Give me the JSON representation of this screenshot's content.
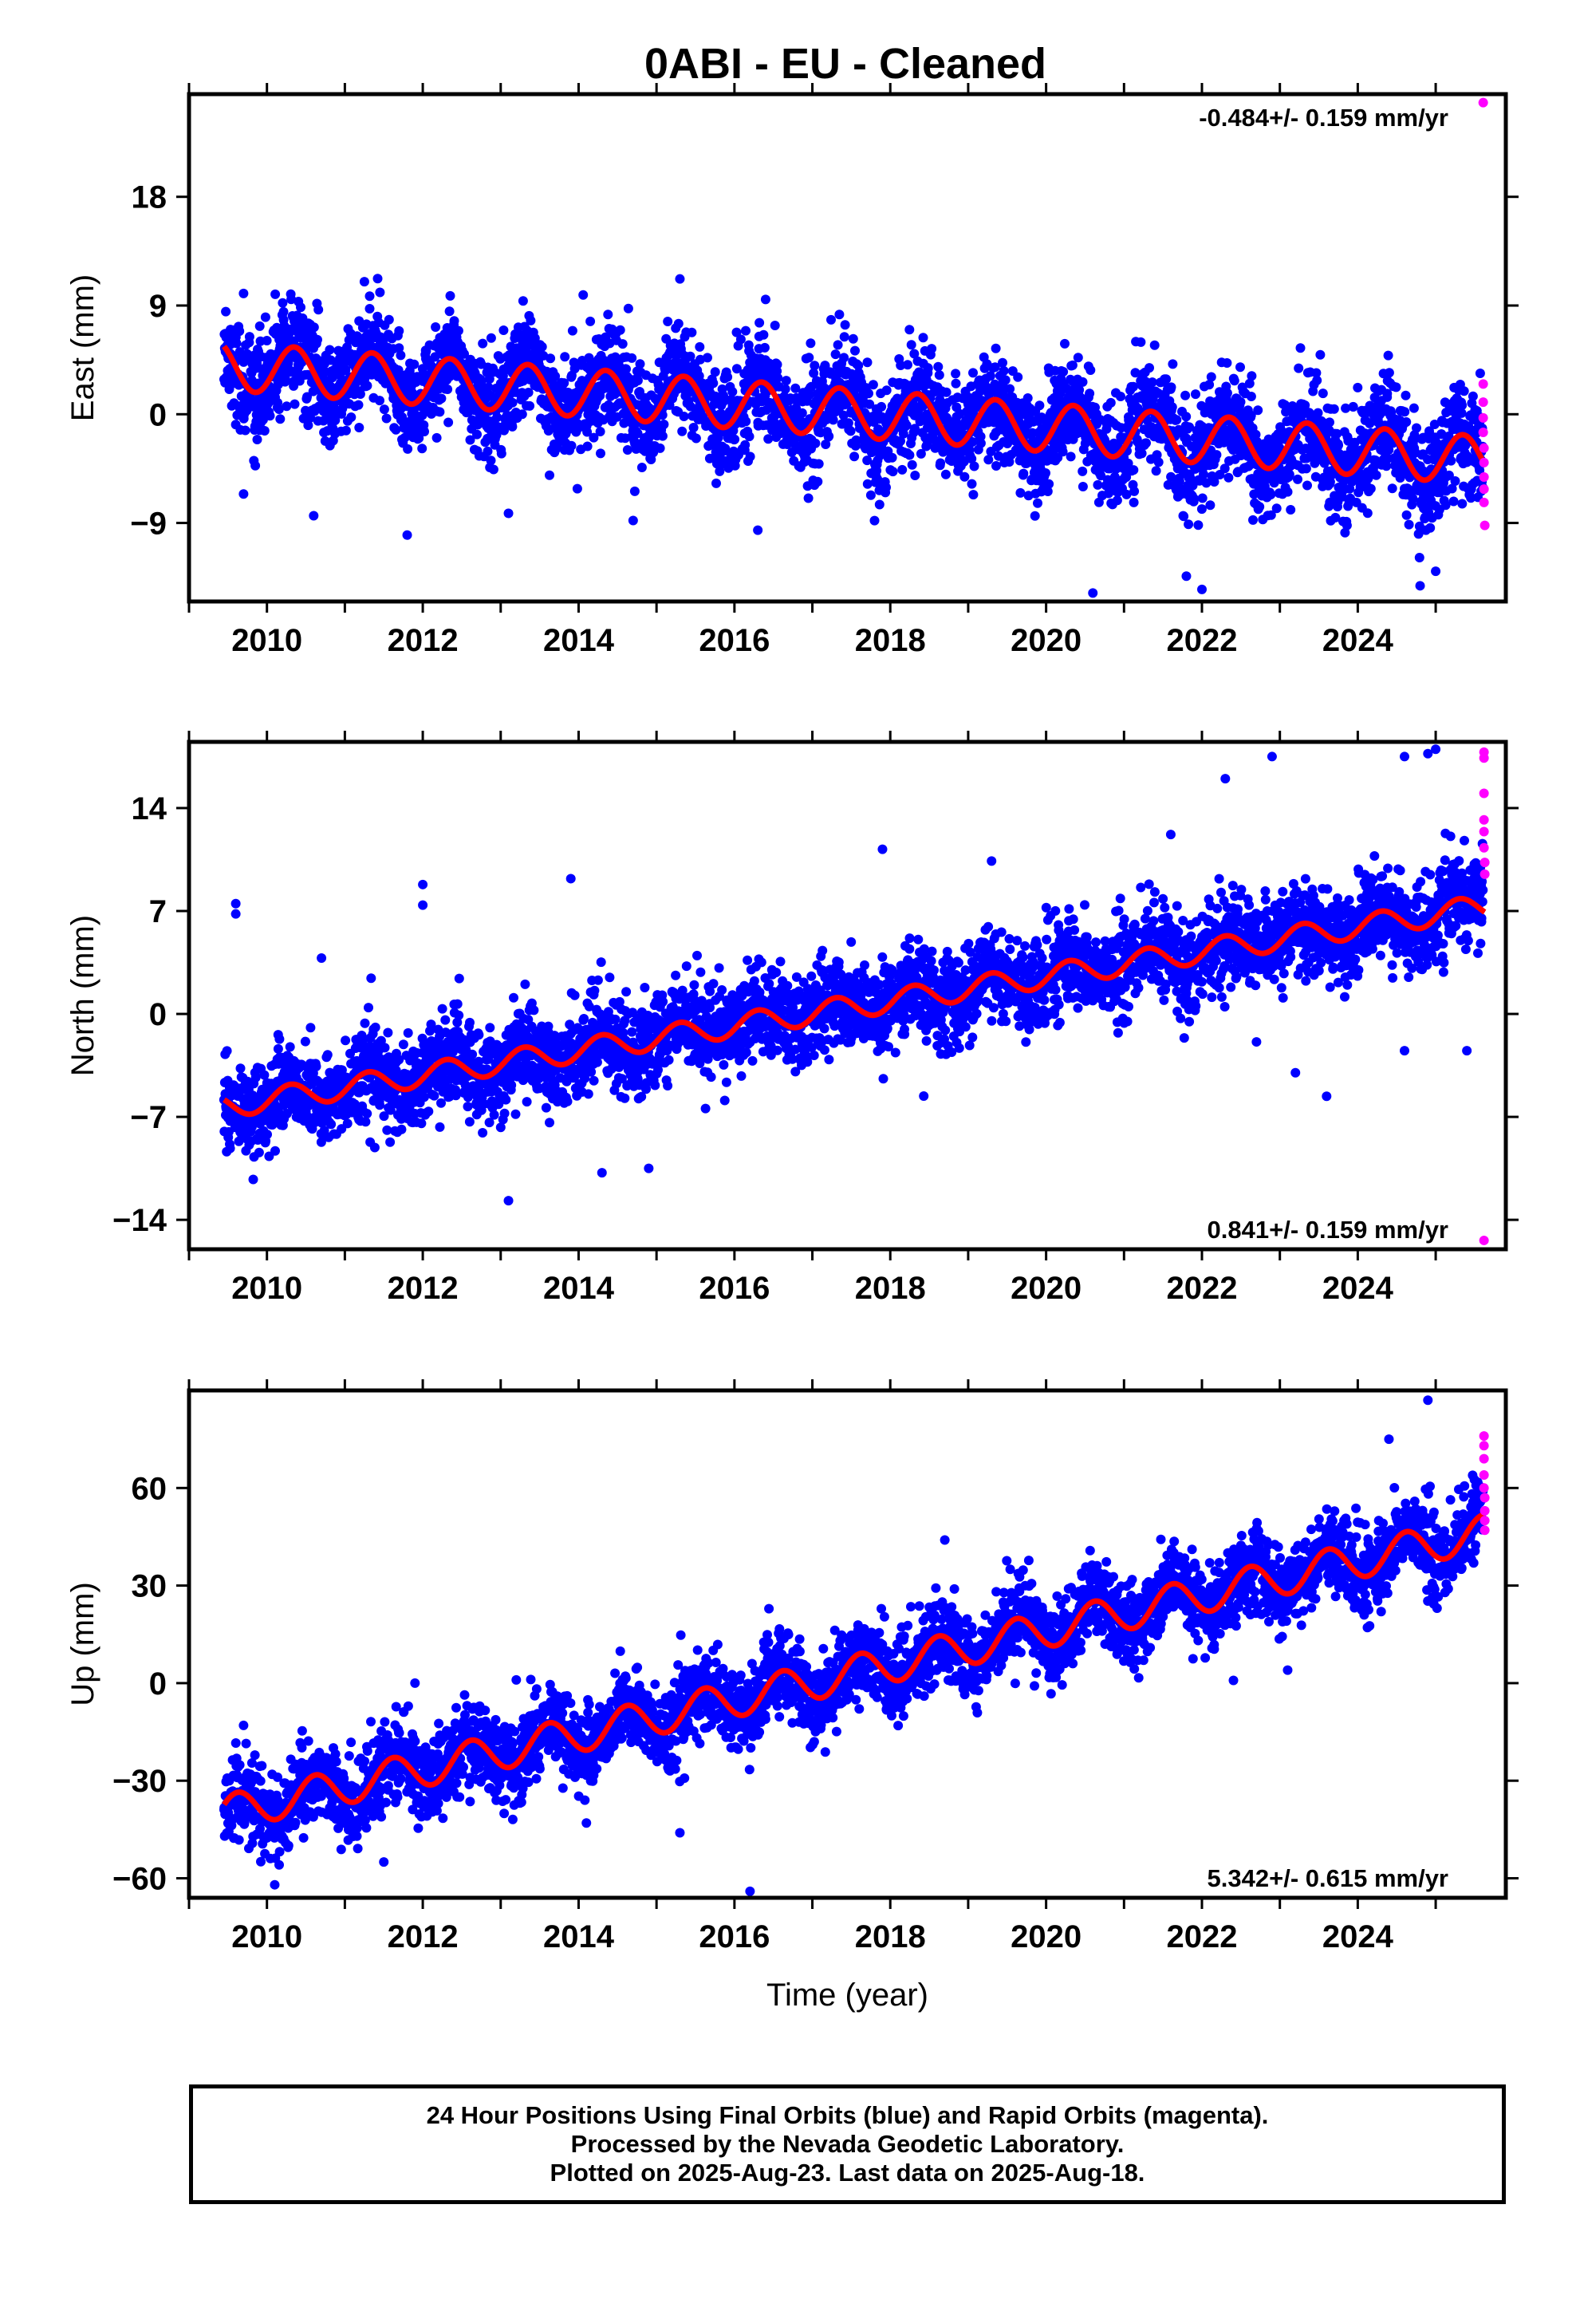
{
  "title": "0ABI  - EU - Cleaned",
  "colors": {
    "final_orbits": "#0000ff",
    "rapid_orbits": "#ff00ff",
    "model": "#ff0000"
  },
  "footer": {
    "line1": "24 Hour Positions Using Final Orbits (blue) and Rapid Orbits (magenta).",
    "line2": "Processed by the Nevada Geodetic Laboratory.",
    "line3": "Plotted on 2025-Aug-23. Last data on 2025-Aug-18."
  },
  "chart_data": [
    {
      "type": "scatter",
      "component": "east",
      "ylabel": "East (mm)",
      "xlabel": "",
      "xlim": [
        2009.0,
        2025.9
      ],
      "ylim": [
        -15.5,
        26.5
      ],
      "x_ticks": [
        2010,
        2012,
        2014,
        2016,
        2018,
        2020,
        2022,
        2024
      ],
      "y_ticks": [
        -9,
        0,
        9,
        18
      ],
      "rate_label": "-0.484+/- 0.159 mm/yr",
      "rate_label_position": "top-right",
      "model": {
        "start_year": 2009.45,
        "end_year": 2025.63,
        "value_at_start": 4.0,
        "trend_mm_per_yr": -0.484,
        "annual_amplitude": 2.0,
        "peak_fraction": 0.35
      },
      "scatter_noise_mm": 2.1,
      "outliers": [
        [
          2009.7,
          -6.6
        ],
        [
          2010.6,
          -8.4
        ],
        [
          2011.8,
          -10.0
        ],
        [
          2013.1,
          -8.2
        ],
        [
          2014.7,
          -8.8
        ],
        [
          2015.3,
          11.2
        ],
        [
          2016.3,
          -9.6
        ],
        [
          2016.4,
          9.5
        ],
        [
          2020.6,
          -14.8
        ],
        [
          2021.8,
          -13.4
        ],
        [
          2022.0,
          -14.5
        ],
        [
          2024.8,
          -14.2
        ],
        [
          2025.0,
          -13.0
        ],
        [
          2009.7,
          10.0
        ]
      ],
      "rapid_points": [
        [
          2025.61,
          25.8
        ],
        [
          2025.61,
          2.5
        ],
        [
          2025.61,
          1.0
        ],
        [
          2025.61,
          -0.3
        ],
        [
          2025.61,
          -1.5
        ],
        [
          2025.62,
          -2.8
        ],
        [
          2025.62,
          -4.0
        ],
        [
          2025.62,
          -5.2
        ],
        [
          2025.62,
          -6.2
        ],
        [
          2025.62,
          -7.3
        ],
        [
          2025.63,
          -9.2
        ]
      ]
    },
    {
      "type": "scatter",
      "component": "north",
      "ylabel": "North (mm)",
      "xlabel": "",
      "xlim": [
        2009.0,
        2025.9
      ],
      "ylim": [
        -16,
        18.5
      ],
      "x_ticks": [
        2010,
        2012,
        2014,
        2016,
        2018,
        2020,
        2022,
        2024
      ],
      "y_ticks": [
        -14,
        -7,
        0,
        7,
        14
      ],
      "rate_label": "0.841+/- 0.159 mm/yr",
      "rate_label_position": "bottom-right",
      "model": {
        "start_year": 2009.45,
        "end_year": 2025.63,
        "value_at_start": -6.3,
        "trend_mm_per_yr": 0.841,
        "annual_amplitude": 0.8,
        "peak_fraction": 0.3
      },
      "scatter_noise_mm": 1.5,
      "outliers": [
        [
          2009.6,
          7.5
        ],
        [
          2009.6,
          6.8
        ],
        [
          2010.7,
          3.8
        ],
        [
          2012.0,
          8.8
        ],
        [
          2012.0,
          7.4
        ],
        [
          2013.1,
          -12.7
        ],
        [
          2013.9,
          9.2
        ],
        [
          2014.3,
          -10.8
        ],
        [
          2014.9,
          -10.5
        ],
        [
          2017.9,
          11.2
        ],
        [
          2019.3,
          10.4
        ],
        [
          2021.6,
          12.2
        ],
        [
          2022.3,
          16.0
        ],
        [
          2022.9,
          17.5
        ],
        [
          2023.2,
          -4.0
        ],
        [
          2023.6,
          -5.6
        ],
        [
          2024.6,
          17.5
        ],
        [
          2024.9,
          17.7
        ],
        [
          2025.0,
          18.0
        ],
        [
          2025.4,
          -2.5
        ],
        [
          2024.6,
          -2.5
        ],
        [
          2022.7,
          -1.9
        ]
      ],
      "rapid_points": [
        [
          2025.62,
          17.8
        ],
        [
          2025.62,
          17.4
        ],
        [
          2025.62,
          15.0
        ],
        [
          2025.62,
          13.2
        ],
        [
          2025.62,
          12.4
        ],
        [
          2025.62,
          11.3
        ],
        [
          2025.63,
          10.3
        ],
        [
          2025.63,
          9.5
        ],
        [
          2025.62,
          -15.4
        ]
      ]
    },
    {
      "type": "scatter",
      "component": "up",
      "ylabel": "Up (mm)",
      "xlabel": "Time (year)",
      "xlim": [
        2009.0,
        2025.9
      ],
      "ylim": [
        -66,
        90
      ],
      "x_ticks": [
        2010,
        2012,
        2014,
        2016,
        2018,
        2020,
        2022,
        2024
      ],
      "y_ticks": [
        -60,
        -30,
        0,
        30,
        60
      ],
      "rate_label": "5.342+/- 0.615 mm/yr",
      "rate_label_position": "bottom-right",
      "model": {
        "start_year": 2009.45,
        "end_year": 2025.63,
        "value_at_start": -40.0,
        "trend_mm_per_yr": 5.342,
        "annual_amplitude": 5.5,
        "peak_fraction": 0.62
      },
      "scatter_noise_mm": 6.0,
      "outliers": [
        [
          2009.7,
          -13.0
        ],
        [
          2010.1,
          -62.0
        ],
        [
          2011.5,
          -55.0
        ],
        [
          2011.9,
          0.0
        ],
        [
          2013.2,
          1.0
        ],
        [
          2014.1,
          -43.0
        ],
        [
          2015.3,
          -46.0
        ],
        [
          2016.2,
          -64.0
        ],
        [
          2018.7,
          44.0
        ],
        [
          2021.4,
          31.0
        ],
        [
          2022.1,
          37.0
        ],
        [
          2023.1,
          4.0
        ],
        [
          2024.4,
          75.0
        ],
        [
          2024.9,
          87.0
        ],
        [
          2024.3,
          22.0
        ]
      ],
      "rapid_points": [
        [
          2025.62,
          76.0
        ],
        [
          2025.62,
          73.0
        ],
        [
          2025.62,
          69.0
        ],
        [
          2025.62,
          64.0
        ],
        [
          2025.62,
          60.0
        ],
        [
          2025.63,
          57.0
        ],
        [
          2025.63,
          53.0
        ],
        [
          2025.63,
          50.0
        ],
        [
          2025.63,
          47.0
        ]
      ]
    }
  ]
}
